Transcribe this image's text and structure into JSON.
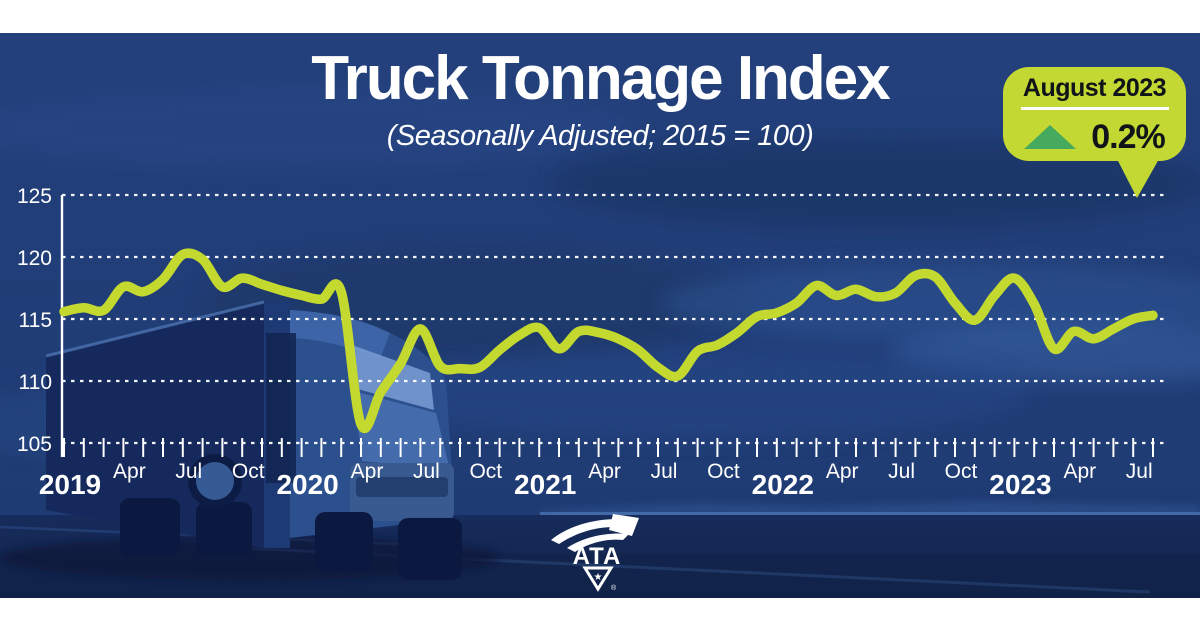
{
  "header": {
    "title": "Truck Tonnage Index",
    "subtitle": "(Seasonally Adjusted; 2015 = 100)"
  },
  "badge": {
    "month_label": "August 2023",
    "change_value": "0.2%",
    "direction": "up",
    "bubble_color": "#c3d832",
    "arrow_color": "#46aa5e",
    "text_color": "#101418"
  },
  "chart_data": {
    "type": "line",
    "title": "Truck Tonnage Index",
    "subtitle": "(Seasonally Adjusted; 2015 = 100)",
    "x_start": "2019-01",
    "x_end": "2023-08",
    "x_frequency": "monthly",
    "ylim": [
      105,
      125
    ],
    "y_ticks": [
      105,
      110,
      115,
      120,
      125
    ],
    "grid": "horizontal-dashed",
    "legend": "none",
    "line_color": "#c3d930",
    "background_color": "#1e3a72",
    "x_tick_labels": [
      {
        "month_index": 0,
        "label": "2019",
        "is_year": true
      },
      {
        "month_index": 3,
        "label": "Apr"
      },
      {
        "month_index": 6,
        "label": "Jul"
      },
      {
        "month_index": 9,
        "label": "Oct"
      },
      {
        "month_index": 12,
        "label": "2020",
        "is_year": true
      },
      {
        "month_index": 15,
        "label": "Apr"
      },
      {
        "month_index": 18,
        "label": "Jul"
      },
      {
        "month_index": 21,
        "label": "Oct"
      },
      {
        "month_index": 24,
        "label": "2021",
        "is_year": true
      },
      {
        "month_index": 27,
        "label": "Apr"
      },
      {
        "month_index": 30,
        "label": "Jul"
      },
      {
        "month_index": 33,
        "label": "Oct"
      },
      {
        "month_index": 36,
        "label": "2022",
        "is_year": true
      },
      {
        "month_index": 39,
        "label": "Apr"
      },
      {
        "month_index": 42,
        "label": "Jul"
      },
      {
        "month_index": 45,
        "label": "Oct"
      },
      {
        "month_index": 48,
        "label": "2023",
        "is_year": true
      },
      {
        "month_index": 51,
        "label": "Apr"
      },
      {
        "month_index": 54,
        "label": "Jul"
      }
    ],
    "series": [
      {
        "name": "Truck Tonnage Index (Seasonally Adjusted)",
        "start": "2019-01",
        "values": [
          115.6,
          115.9,
          115.7,
          117.6,
          117.2,
          118.2,
          120.2,
          119.8,
          117.6,
          118.3,
          117.8,
          117.3,
          116.9,
          116.6,
          117.2,
          106.5,
          109.1,
          111.4,
          114.2,
          111.2,
          111.0,
          111.1,
          112.5,
          113.7,
          114.3,
          112.6,
          114.0,
          113.9,
          113.4,
          112.5,
          111.1,
          110.4,
          112.4,
          112.9,
          113.9,
          115.2,
          115.5,
          116.3,
          117.7,
          116.9,
          117.4,
          116.8,
          117.1,
          118.5,
          118.4,
          116.3,
          114.9,
          116.9,
          118.3,
          116.2,
          112.6,
          114.0,
          113.4,
          114.2,
          115.0,
          115.3
        ]
      }
    ]
  },
  "logo": {
    "text": "ATA",
    "star": "★",
    "registered_mark": "®"
  }
}
